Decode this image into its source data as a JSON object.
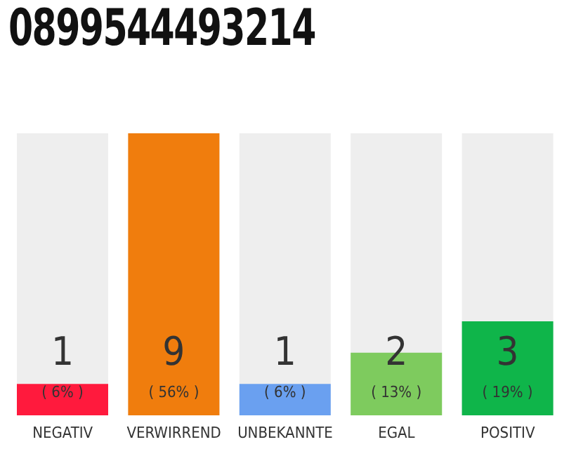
{
  "chart_data": {
    "type": "bar",
    "title": "0899544493214",
    "categories": [
      "NEGATIV",
      "VERWIRREND",
      "UNBEKANNTE",
      "EGAL",
      "POSITIV"
    ],
    "values": [
      1,
      9,
      1,
      2,
      3
    ],
    "colors": [
      "#ff1a3d",
      "#f07d0d",
      "#6aa0f0",
      "#7ecb5e",
      "#0fb54a"
    ],
    "ylim": [
      0,
      9
    ],
    "tick_labels": "x",
    "data_labels": true,
    "annotations": [
      "( 6% )",
      "( 56% )",
      "( 6% )",
      "( 13% )",
      "( 19% )"
    ]
  }
}
